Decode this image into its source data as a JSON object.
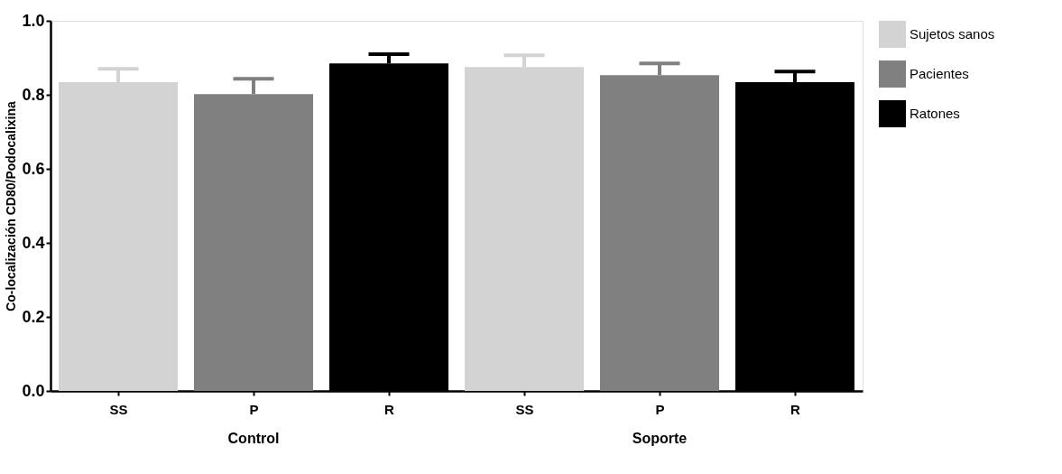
{
  "chart_data": {
    "type": "bar",
    "ylabel": "Co-localización CD80/Podocalixina",
    "categories": [
      "SS",
      "P",
      "R",
      "SS",
      "P",
      "R"
    ],
    "series": [
      {
        "name": "Sujetos sanos",
        "color": "#d3d3d3",
        "values": [
          0.834,
          null,
          null,
          0.875,
          null,
          null
        ],
        "errors": [
          [
            0.834,
            0.87
          ],
          null,
          null,
          [
            0.875,
            0.907
          ],
          null,
          null
        ]
      },
      {
        "name": "Pacientes",
        "color": "#808080",
        "values": [
          null,
          0.802,
          null,
          null,
          0.853,
          null
        ],
        "errors": [
          null,
          [
            0.802,
            0.843
          ],
          null,
          null,
          [
            0.853,
            0.885
          ],
          null
        ]
      },
      {
        "name": "Ratones",
        "color": "#000000",
        "values": [
          null,
          null,
          0.885,
          null,
          null,
          0.834
        ],
        "errors": [
          null,
          null,
          [
            0.885,
            0.91
          ],
          null,
          null,
          [
            0.834,
            0.863
          ]
        ]
      }
    ],
    "ylim": [
      0,
      1.0
    ],
    "yticks": [
      {
        "value": 0,
        "label": "0.0"
      },
      {
        "value": 0.2,
        "label": "0.2"
      },
      {
        "value": 0.4,
        "label": "0.4"
      },
      {
        "value": 0.6,
        "label": "0.6"
      },
      {
        "value": 0.8,
        "label": "0.8"
      },
      {
        "value": 1.0,
        "label": "1.0"
      }
    ],
    "annotations": [
      "Control",
      "Soporte"
    ],
    "grid": false,
    "legend": "top right"
  }
}
